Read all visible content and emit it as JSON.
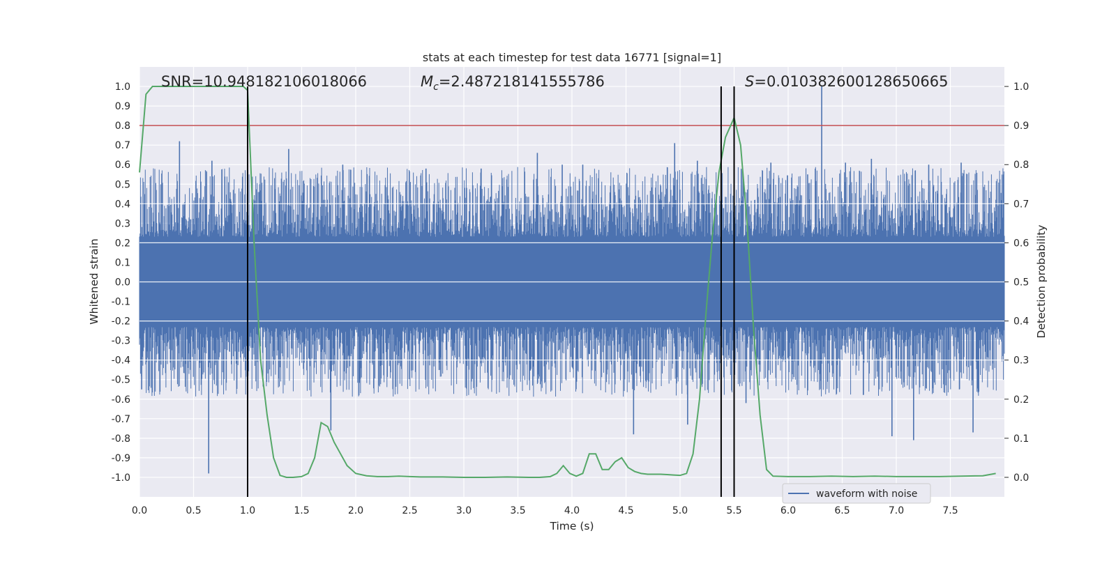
{
  "chart_data": {
    "type": "line",
    "title": "stats at each timestep for test data 16771 [signal=1]",
    "xlabel": "Time (s)",
    "ylabel_left": "Whitened strain",
    "ylabel_right": "Detection probability",
    "xlim": [
      0.0,
      8.0
    ],
    "ylim_left": [
      -1.1,
      1.1
    ],
    "ylim_right": [
      -0.05,
      1.05
    ],
    "x_ticks": [
      "0.0",
      "0.5",
      "1.0",
      "1.5",
      "2.0",
      "2.5",
      "3.0",
      "3.5",
      "4.0",
      "4.5",
      "5.0",
      "5.5",
      "6.0",
      "6.5",
      "7.0",
      "7.5"
    ],
    "y_ticks_left": [
      "1.0",
      "0.9",
      "0.8",
      "0.7",
      "0.6",
      "0.5",
      "0.4",
      "0.3",
      "0.2",
      "0.1",
      "0.0",
      "-0.1",
      "-0.2",
      "-0.3",
      "-0.4",
      "-0.5",
      "-0.6",
      "-0.7",
      "-0.8",
      "-0.9",
      "-1.0"
    ],
    "y_ticks_right": [
      "1.0",
      "0.9",
      "0.8",
      "0.7",
      "0.6",
      "0.5",
      "0.4",
      "0.3",
      "0.2",
      "0.1",
      "0.0"
    ],
    "grid": true,
    "legend_position": "lower-right",
    "annotations": {
      "snr": "SNR=10.948182106018066",
      "mc_symbol": "M",
      "mc_sub": "c",
      "mc_value": "=2.487218141555786",
      "s_symbol": "S",
      "s_value": "=0.010382600128650665"
    },
    "threshold": {
      "value": 0.9,
      "axis": "right",
      "color": "#c44e52"
    },
    "vlines": [
      {
        "x": 1.0,
        "y0": -0.05,
        "y1": 1.0
      },
      {
        "x": 5.38,
        "y0": -0.05,
        "y1": 1.0
      },
      {
        "x": 5.5,
        "y0": -0.05,
        "y1": 1.0
      }
    ],
    "series": [
      {
        "name": "waveform with noise",
        "axis": "left",
        "color": "#4c72b0",
        "style": "dense-noise",
        "envelope_typical": 0.42,
        "peaks": [
          [
            0.02,
            -0.55
          ],
          [
            0.37,
            0.72
          ],
          [
            0.64,
            -0.98
          ],
          [
            0.67,
            0.62
          ],
          [
            1.0,
            -0.68
          ],
          [
            1.38,
            0.68
          ],
          [
            1.77,
            -0.76
          ],
          [
            1.88,
            0.6
          ],
          [
            2.65,
            0.58
          ],
          [
            3.16,
            0.58
          ],
          [
            3.68,
            0.66
          ],
          [
            3.91,
            0.6
          ],
          [
            4.1,
            0.6
          ],
          [
            4.57,
            -0.78
          ],
          [
            4.95,
            0.71
          ],
          [
            5.07,
            -0.73
          ],
          [
            5.16,
            0.62
          ],
          [
            5.61,
            -0.62
          ],
          [
            5.84,
            0.61
          ],
          [
            6.18,
            0.55
          ],
          [
            6.31,
            1.0
          ],
          [
            6.53,
            0.61
          ],
          [
            6.77,
            0.63
          ],
          [
            6.96,
            -0.79
          ],
          [
            7.16,
            -0.81
          ],
          [
            7.3,
            0.6
          ],
          [
            7.6,
            0.61
          ],
          [
            7.71,
            -0.77
          ]
        ]
      },
      {
        "name": "detection probability",
        "axis": "right",
        "color": "#55a868",
        "x": [
          0.0,
          0.06,
          0.12,
          0.18,
          0.3,
          0.6,
          0.9,
          0.96,
          1.0,
          1.06,
          1.12,
          1.18,
          1.24,
          1.3,
          1.36,
          1.42,
          1.5,
          1.56,
          1.62,
          1.68,
          1.74,
          1.8,
          1.86,
          1.92,
          2.0,
          2.1,
          2.2,
          2.3,
          2.4,
          2.5,
          2.6,
          2.8,
          3.0,
          3.2,
          3.4,
          3.6,
          3.7,
          3.8,
          3.86,
          3.92,
          3.98,
          4.04,
          4.1,
          4.16,
          4.22,
          4.28,
          4.34,
          4.4,
          4.46,
          4.52,
          4.58,
          4.64,
          4.7,
          4.76,
          4.82,
          4.88,
          4.94,
          5.0,
          5.06,
          5.12,
          5.18,
          5.24,
          5.3,
          5.36,
          5.42,
          5.5,
          5.56,
          5.62,
          5.68,
          5.74,
          5.8,
          5.86,
          6.0,
          6.2,
          6.4,
          6.6,
          6.8,
          7.0,
          7.2,
          7.4,
          7.6,
          7.8,
          7.92
        ],
        "y": [
          0.78,
          0.98,
          1.0,
          1.0,
          1.0,
          1.0,
          1.0,
          1.0,
          0.99,
          0.6,
          0.3,
          0.16,
          0.05,
          0.005,
          0.0,
          0.0,
          0.002,
          0.01,
          0.05,
          0.14,
          0.13,
          0.09,
          0.06,
          0.03,
          0.01,
          0.004,
          0.002,
          0.002,
          0.003,
          0.002,
          0.001,
          0.001,
          0.0,
          0.0,
          0.001,
          0.0,
          0.0,
          0.002,
          0.01,
          0.03,
          0.01,
          0.003,
          0.01,
          0.06,
          0.06,
          0.02,
          0.02,
          0.04,
          0.05,
          0.025,
          0.015,
          0.01,
          0.008,
          0.008,
          0.008,
          0.007,
          0.006,
          0.005,
          0.01,
          0.06,
          0.2,
          0.42,
          0.62,
          0.78,
          0.87,
          0.92,
          0.85,
          0.65,
          0.38,
          0.16,
          0.02,
          0.003,
          0.002,
          0.002,
          0.003,
          0.002,
          0.003,
          0.002,
          0.002,
          0.002,
          0.003,
          0.004,
          0.01
        ]
      }
    ]
  }
}
